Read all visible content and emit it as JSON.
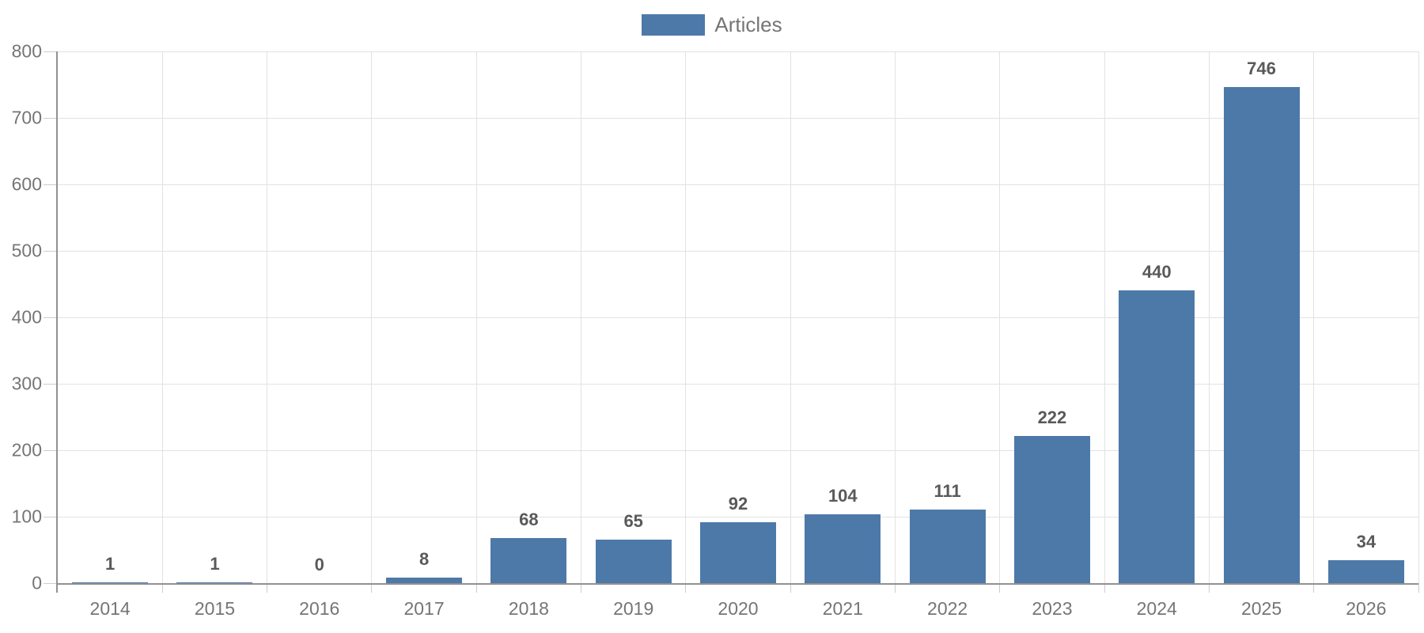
{
  "chart_data": {
    "type": "bar",
    "title": "",
    "categories": [
      "2014",
      "2015",
      "2016",
      "2017",
      "2018",
      "2019",
      "2020",
      "2021",
      "2022",
      "2023",
      "2024",
      "2025",
      "2026"
    ],
    "series": [
      {
        "name": "Articles",
        "values": [
          1,
          1,
          0,
          8,
          68,
          65,
          92,
          104,
          111,
          222,
          440,
          746,
          34
        ]
      }
    ],
    "value_labels": [
      "1",
      "1",
      "0",
      "8",
      "68",
      "65",
      "92",
      "104",
      "111",
      "222",
      "440",
      "746",
      "34"
    ],
    "ylim": [
      0,
      800
    ],
    "ytick_step": 100,
    "ytick_labels": [
      "0",
      "100",
      "200",
      "300",
      "400",
      "500",
      "600",
      "700",
      "800"
    ],
    "grid": "horizontal and vertical",
    "legend_position": "top-center",
    "value_labels_shown": true
  },
  "legend": {
    "label": "Articles"
  },
  "colors": {
    "bar": "#4d79a8",
    "grid": "#e2e2e2",
    "axis": "#919191",
    "tick": "#cccccc",
    "tick_label": "#757575",
    "value_label": "#595959",
    "legend_text": "#757575",
    "background": "#ffffff"
  }
}
